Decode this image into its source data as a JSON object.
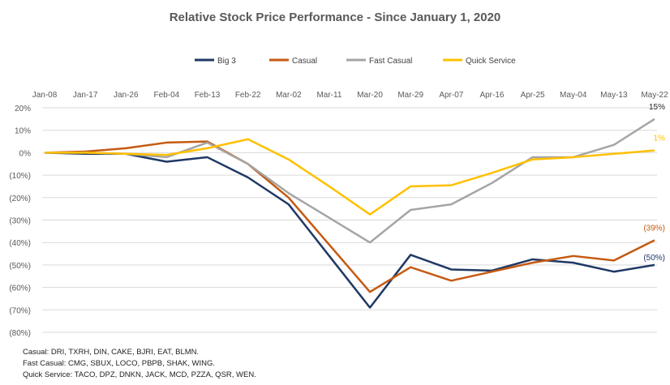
{
  "chart_data": {
    "type": "line",
    "title": "Relative Stock Price Performance - Since January 1, 2020",
    "categories": [
      "Jan-08",
      "Jan-17",
      "Jan-26",
      "Feb-04",
      "Feb-13",
      "Feb-22",
      "Mar-02",
      "Mar-11",
      "Mar-20",
      "Mar-29",
      "Apr-07",
      "Apr-16",
      "Apr-25",
      "May-04",
      "May-13",
      "May-22"
    ],
    "ylim": [
      -80,
      20
    ],
    "yticks": [
      20,
      10,
      0,
      -10,
      -20,
      -30,
      -40,
      -50,
      -60,
      -70,
      -80
    ],
    "ytick_labels": [
      "20%",
      "10%",
      "0%",
      "(10%)",
      "(20%)",
      "(30%)",
      "(40%)",
      "(50%)",
      "(60%)",
      "(70%)",
      "(80%)"
    ],
    "grid": true,
    "legend_position": "top",
    "series": [
      {
        "name": "Big 3",
        "color": "#1f3864",
        "values": [
          0,
          -0.5,
          -0.5,
          -4,
          -2,
          -11,
          -23,
          -46,
          -69,
          -45.5,
          -52,
          -52.5,
          -47.5,
          -49,
          -53,
          -50
        ],
        "end_label": "(50%)"
      },
      {
        "name": "Casual",
        "color": "#c55a11",
        "values": [
          0,
          0.5,
          2,
          4.5,
          5,
          -5,
          -20,
          -41,
          -62,
          -51,
          -57,
          -53,
          -49,
          -46,
          -48,
          -39
        ],
        "end_label": "(39%)"
      },
      {
        "name": "Fast Casual",
        "color": "#a5a5a5",
        "values": [
          0,
          0,
          -0.5,
          -2,
          4.5,
          -5,
          -18,
          -29,
          -40,
          -25.5,
          -23,
          -13.5,
          -2,
          -2,
          3.5,
          15
        ],
        "end_label": "15%"
      },
      {
        "name": "Quick Service",
        "color": "#ffc000",
        "values": [
          0,
          0,
          -0.5,
          -1,
          2,
          6,
          -3,
          -15,
          -27.5,
          -15,
          -14.5,
          -9,
          -3,
          -2,
          -0.5,
          1
        ],
        "end_label": "1%"
      }
    ]
  },
  "notes": [
    "Casual: DRI, TXRH, DIN, CAKE, BJRI, EAT, BLMN.",
    "Fast Casual: CMG, SBUX, LOCO, PBPB, SHAK, WING.",
    "Quick Service: TACO, DPZ, DNKN, JACK, MCD, PZZA, QSR, WEN."
  ]
}
